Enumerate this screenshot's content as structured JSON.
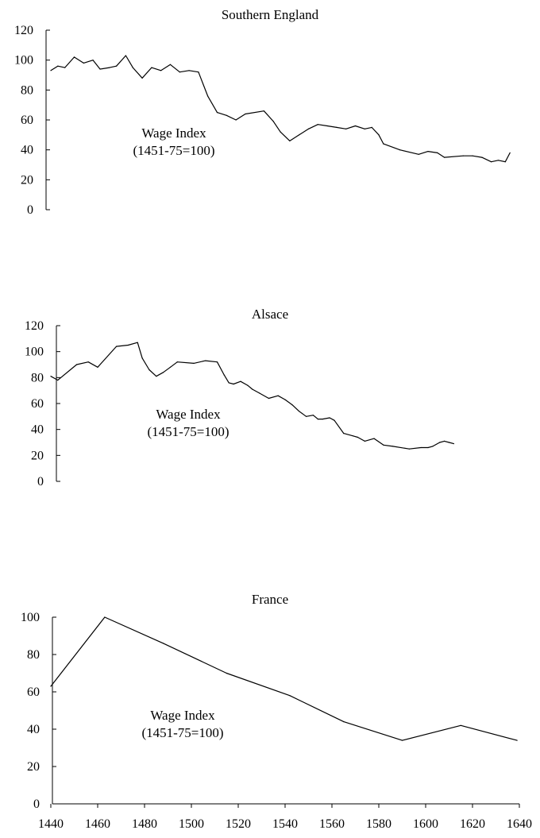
{
  "chart_data": [
    {
      "type": "line",
      "title": "Southern England",
      "annotation": [
        "Wage Index",
        "(1451-75=100)"
      ],
      "ylim": [
        0,
        120
      ],
      "yticks": [
        0,
        20,
        40,
        60,
        80,
        100,
        120
      ],
      "x_range": [
        1440,
        1640
      ],
      "grid": false,
      "series": [
        {
          "x": [
            1440,
            1443,
            1446,
            1450,
            1454,
            1458,
            1461,
            1465,
            1468,
            1472,
            1475,
            1479,
            1483,
            1487,
            1491,
            1495,
            1499,
            1503,
            1507,
            1511,
            1515,
            1519,
            1523,
            1531,
            1535,
            1538,
            1542,
            1546,
            1550,
            1554,
            1558,
            1562,
            1566,
            1570,
            1574,
            1577,
            1580,
            1582,
            1589,
            1597,
            1601,
            1605,
            1608,
            1616,
            1620,
            1624,
            1628,
            1631,
            1634,
            1636
          ],
          "y": [
            93,
            96,
            95,
            102,
            98,
            100,
            94,
            95,
            96,
            103,
            95,
            88,
            95,
            93,
            97,
            92,
            93,
            92,
            76,
            65,
            63,
            60,
            64,
            66,
            59,
            52,
            46,
            50,
            54,
            57,
            56,
            55,
            54,
            56,
            54,
            55,
            50,
            44,
            40,
            37,
            39,
            38,
            35,
            36,
            36,
            35,
            32,
            33,
            32,
            38
          ]
        }
      ]
    },
    {
      "type": "line",
      "title": "Alsace",
      "annotation": [
        "Wage Index",
        "(1451-75=100)"
      ],
      "ylim": [
        0,
        120
      ],
      "yticks": [
        0,
        20,
        40,
        60,
        80,
        100,
        120
      ],
      "x_range": [
        1440,
        1640
      ],
      "grid": false,
      "series": [
        {
          "x": [
            1440,
            1443,
            1451,
            1456,
            1460,
            1468,
            1473,
            1477,
            1479,
            1482,
            1485,
            1488,
            1491,
            1494,
            1501,
            1506,
            1511,
            1514,
            1516,
            1518,
            1521,
            1524,
            1526,
            1529,
            1533,
            1537,
            1540,
            1543,
            1546,
            1549,
            1552,
            1554,
            1556,
            1559,
            1561,
            1565,
            1569,
            1571,
            1574,
            1578,
            1582,
            1586,
            1593,
            1598,
            1601,
            1603,
            1606,
            1608,
            1610,
            1612
          ],
          "y": [
            81,
            78,
            90,
            92,
            88,
            104,
            105,
            107,
            95,
            86,
            81,
            84,
            88,
            92,
            91,
            93,
            92,
            82,
            76,
            75,
            77,
            74,
            71,
            68,
            64,
            66,
            63,
            59,
            54,
            50,
            51,
            48,
            48,
            49,
            47,
            37,
            35,
            34,
            31,
            33,
            28,
            27,
            25,
            26,
            26,
            27,
            30,
            31,
            30,
            29
          ]
        }
      ]
    },
    {
      "type": "line",
      "title": "France",
      "annotation": [
        "Wage Index",
        "(1451-75=100)"
      ],
      "ylim": [
        0,
        100
      ],
      "yticks": [
        0,
        20,
        40,
        60,
        80,
        100
      ],
      "x_range": [
        1440,
        1640
      ],
      "xticks": [
        1440,
        1460,
        1480,
        1500,
        1520,
        1540,
        1560,
        1580,
        1600,
        1620,
        1640
      ],
      "grid": false,
      "series": [
        {
          "x": [
            1440,
            1463,
            1488,
            1515,
            1542,
            1565,
            1590,
            1615,
            1639
          ],
          "y": [
            63,
            100,
            86,
            70,
            58,
            44,
            34,
            42,
            34
          ]
        }
      ]
    }
  ]
}
